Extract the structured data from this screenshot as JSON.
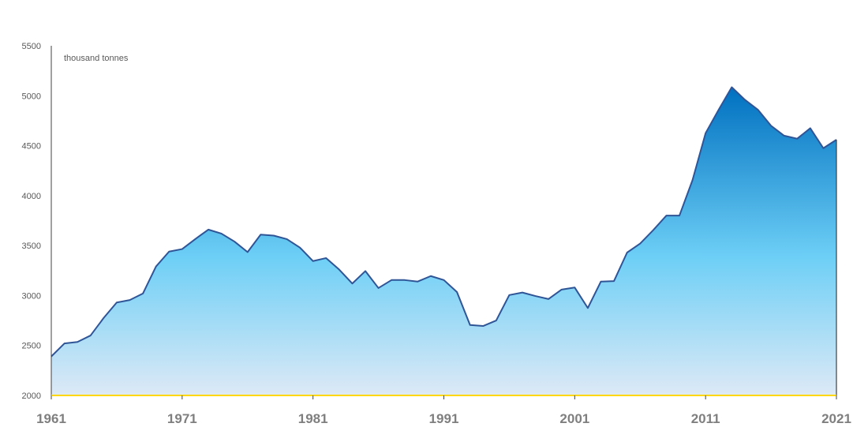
{
  "chart_data": {
    "type": "area",
    "unit_label": "thousand tonnes",
    "ylim": [
      2000,
      5500
    ],
    "y_ticks": [
      2000,
      2500,
      3000,
      3500,
      4000,
      4500,
      5000,
      5500
    ],
    "xlim": [
      1961,
      2021
    ],
    "x_ticks": [
      1961,
      1971,
      1981,
      1991,
      2001,
      2011,
      2021
    ],
    "grid": false,
    "legend": "none",
    "x": [
      1961,
      1962,
      1963,
      1964,
      1965,
      1966,
      1967,
      1968,
      1969,
      1970,
      1971,
      1972,
      1973,
      1974,
      1975,
      1976,
      1977,
      1978,
      1979,
      1980,
      1981,
      1982,
      1983,
      1984,
      1985,
      1986,
      1987,
      1988,
      1989,
      1990,
      1991,
      1992,
      1993,
      1994,
      1995,
      1996,
      1997,
      1998,
      1999,
      2000,
      2001,
      2002,
      2003,
      2004,
      2005,
      2006,
      2007,
      2008,
      2009,
      2010,
      2011,
      2012,
      2013,
      2014,
      2015,
      2016,
      2017,
      2018,
      2019,
      2020,
      2021
    ],
    "values": [
      2390,
      2520,
      2535,
      2600,
      2775,
      2930,
      2955,
      3020,
      3290,
      3440,
      3465,
      3565,
      3660,
      3620,
      3540,
      3435,
      3610,
      3600,
      3565,
      3480,
      3345,
      3375,
      3260,
      3120,
      3245,
      3075,
      3155,
      3155,
      3140,
      3195,
      3155,
      3035,
      2705,
      2695,
      2750,
      3005,
      3030,
      2995,
      2965,
      3060,
      3080,
      2875,
      3140,
      3145,
      3430,
      3520,
      3655,
      3800,
      3800,
      4155,
      4625,
      4860,
      5085,
      4960,
      4860,
      4700,
      4600,
      4570,
      4675,
      4475,
      4560
    ],
    "colors": {
      "line": "#2f5597",
      "fill_top": "#0070c0",
      "fill_mid": "#6dcff6",
      "fill_bottom": "#dde9f6",
      "baseline": "#ffd700"
    }
  }
}
